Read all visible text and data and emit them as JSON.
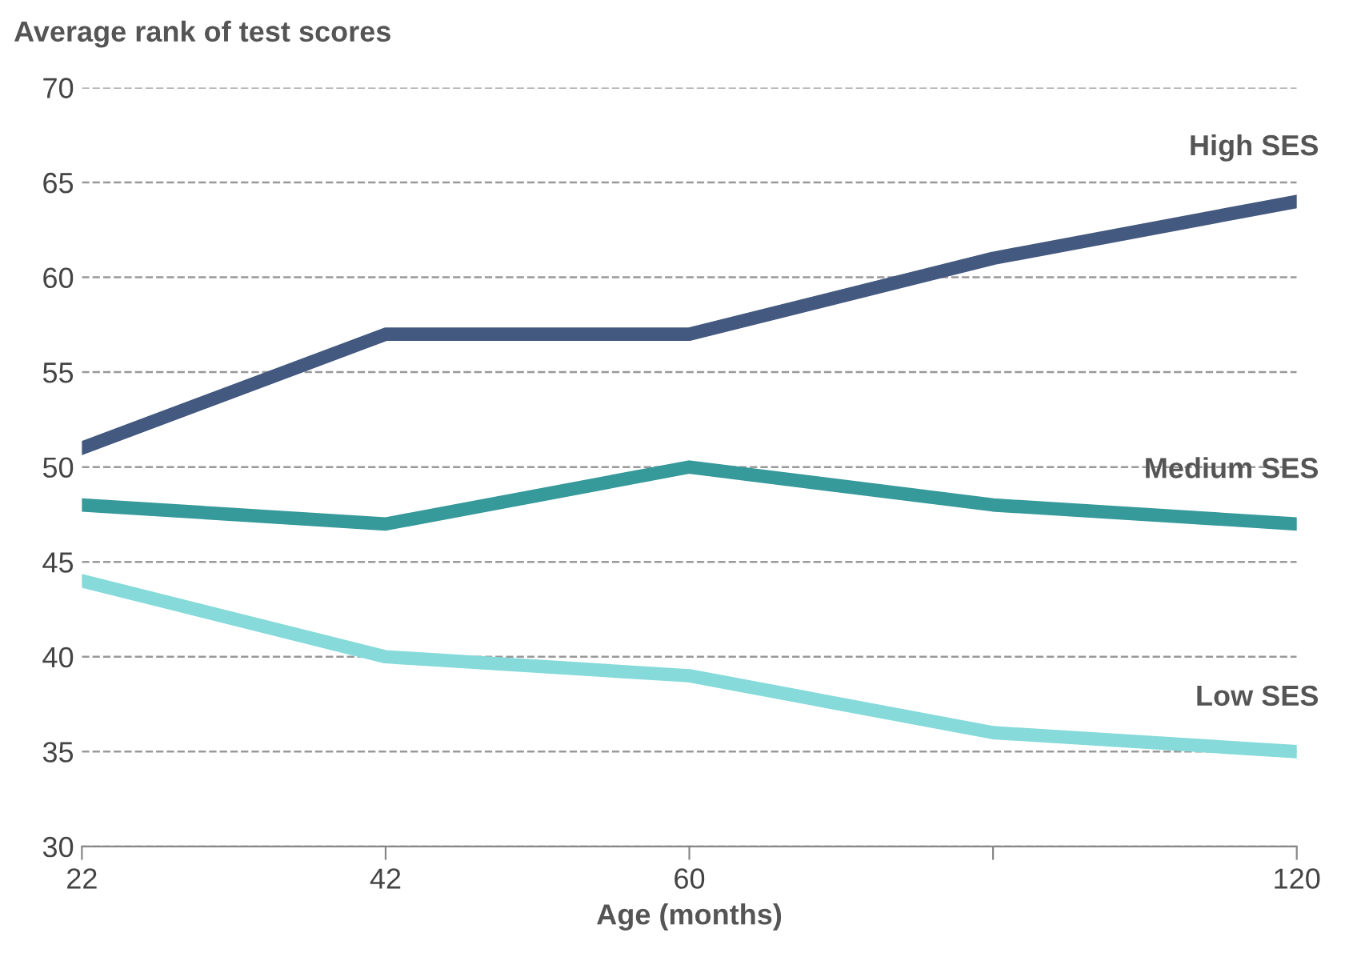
{
  "chart_data": {
    "type": "line",
    "title": "Average rank of test scores",
    "xlabel": "Age (months)",
    "categories": [
      "22",
      "42",
      "60",
      null,
      "120"
    ],
    "series": [
      {
        "name": "High SES",
        "color": "#44597f",
        "values": [
          51,
          57,
          57,
          61,
          64
        ]
      },
      {
        "name": "Medium SES",
        "color": "#36999a",
        "values": [
          48,
          47,
          50,
          48,
          47
        ]
      },
      {
        "name": "Low SES",
        "color": "#86dada",
        "values": [
          44,
          40,
          39,
          36,
          35
        ]
      }
    ],
    "ylim": [
      30,
      70
    ],
    "yticks": [
      30,
      35,
      40,
      45,
      50,
      55,
      60,
      65,
      70
    ],
    "grid": "y",
    "legend": false,
    "line_style": "solid",
    "marker": "none"
  }
}
